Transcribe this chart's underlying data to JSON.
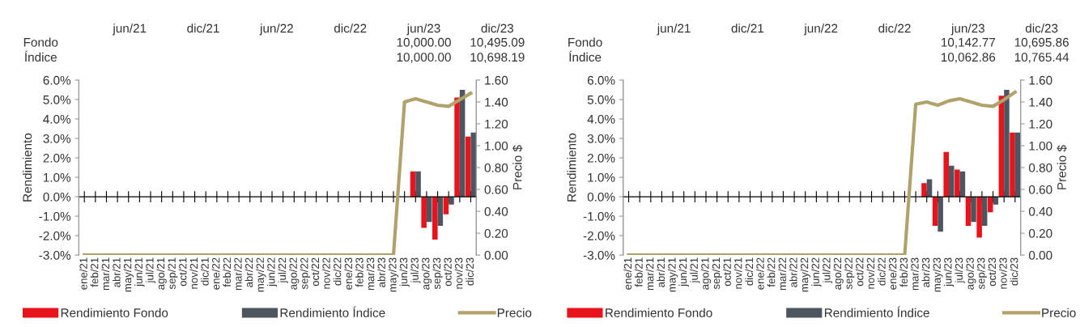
{
  "chart_data": [
    {
      "type": "bar",
      "ylabel": "Rendimiento",
      "y2label": "Precio $",
      "legend": "bottom",
      "marker": "none",
      "line_style": "solid",
      "annotations": [
        "jun/21",
        "dic/21",
        "jun/22",
        "dic/22",
        "jun/23",
        "dic/23",
        "Fondo",
        "10,000.00",
        "10,495.09",
        "Índice",
        "10,000.00",
        "10,698.19"
      ],
      "categories": [
        "ene/21",
        "feb/21",
        "mar/21",
        "abr/21",
        "may/21",
        "jun/21",
        "jul/21",
        "ago/21",
        "sep/21",
        "oct/21",
        "nov/21",
        "dic/21",
        "ene/22",
        "feb/22",
        "mar/22",
        "abr/22",
        "may/22",
        "jun/22",
        "jul/22",
        "ago/22",
        "sep/22",
        "oct/22",
        "nov/22",
        "dic/22",
        "ene/23",
        "feb/23",
        "mar/23",
        "abr/23",
        "may/23",
        "jun/23",
        "jul/23",
        "ago/23",
        "sep/23",
        "oct/23",
        "nov/23",
        "dic/23"
      ],
      "ylim": [
        -3,
        6
      ],
      "yticks": [
        {
          "value": -3,
          "label": "-3.0%"
        },
        {
          "value": -2,
          "label": "-2.0%"
        },
        {
          "value": -1,
          "label": "-1.0%"
        },
        {
          "value": 0,
          "label": "0.0%"
        },
        {
          "value": 1,
          "label": "1.0%"
        },
        {
          "value": 2,
          "label": "2.0%"
        },
        {
          "value": 3,
          "label": "3.0%"
        },
        {
          "value": 4,
          "label": "4.0%"
        },
        {
          "value": 5,
          "label": "5.0%"
        },
        {
          "value": 6,
          "label": "6.0%"
        }
      ],
      "y2lim": [
        0,
        1.6
      ],
      "y2ticks": [
        {
          "value": 0,
          "label": "0.00"
        },
        {
          "value": 0.2,
          "label": "0.20"
        },
        {
          "value": 0.4,
          "label": "0.40"
        },
        {
          "value": 0.6,
          "label": "0.60"
        },
        {
          "value": 0.8,
          "label": "0.80"
        },
        {
          "value": 1.0,
          "label": "1.00"
        },
        {
          "value": 1.2,
          "label": "1.20"
        },
        {
          "value": 1.4,
          "label": "1.40"
        },
        {
          "value": 1.6,
          "label": "1.60"
        }
      ],
      "series": [
        {
          "name": "Rendimiento Fondo",
          "color": "#e8131b",
          "values": [
            null,
            null,
            null,
            null,
            null,
            null,
            null,
            null,
            null,
            null,
            null,
            null,
            null,
            null,
            null,
            null,
            null,
            null,
            null,
            null,
            null,
            null,
            null,
            null,
            null,
            null,
            null,
            null,
            null,
            null,
            1.3,
            -1.6,
            -2.2,
            -0.9,
            5.1,
            3.1
          ]
        },
        {
          "name": "Rendimiento Índice",
          "color": "#4d5561",
          "values": [
            null,
            null,
            null,
            null,
            null,
            null,
            null,
            null,
            null,
            null,
            null,
            null,
            null,
            null,
            null,
            null,
            null,
            null,
            null,
            null,
            null,
            null,
            null,
            null,
            null,
            null,
            null,
            null,
            null,
            null,
            1.3,
            -1.3,
            -1.5,
            -0.4,
            5.5,
            3.3
          ]
        },
        {
          "name": "Precio",
          "type": "line",
          "axis": "y2",
          "color": "#b0a26a",
          "values": [
            0,
            0,
            0,
            0,
            0,
            0,
            0,
            0,
            0,
            0,
            0,
            0,
            0,
            0,
            0,
            0,
            0,
            0,
            0,
            0,
            0,
            0,
            0,
            0,
            0,
            0,
            0,
            0,
            0,
            1.4,
            1.43,
            1.4,
            1.37,
            1.36,
            1.42,
            1.48
          ]
        }
      ]
    },
    {
      "type": "bar",
      "ylabel": "Rendimiento",
      "y2label": "Precio $",
      "legend": "bottom",
      "marker": "none",
      "line_style": "solid",
      "annotations": [
        "jun/21",
        "dic/21",
        "jun/22",
        "dic/22",
        "jun/23",
        "dic/23",
        "Fondo",
        "10,142.77",
        "10,695.86",
        "Índice",
        "10,062.86",
        "10,765.44"
      ],
      "categories": [
        "ene/21",
        "feb/21",
        "mar/21",
        "abr/21",
        "may/21",
        "jun/21",
        "jul/21",
        "ago/21",
        "sep/21",
        "oct/21",
        "nov/21",
        "dic/21",
        "ene/22",
        "feb/22",
        "mar/22",
        "abr/22",
        "may/22",
        "jun/22",
        "jul/22",
        "ago/22",
        "sep/22",
        "oct/22",
        "nov/22",
        "dic/22",
        "ene/23",
        "feb/23",
        "mar/23",
        "abr/23",
        "may/23",
        "jun/23",
        "jul/23",
        "ago/23",
        "sep/23",
        "oct/23",
        "nov/23",
        "dic/23"
      ],
      "ylim": [
        -3,
        6
      ],
      "yticks": [
        {
          "value": -3,
          "label": "-3.0%"
        },
        {
          "value": -2,
          "label": "-2.0%"
        },
        {
          "value": -1,
          "label": "-1.0%"
        },
        {
          "value": 0,
          "label": "0.0%"
        },
        {
          "value": 1,
          "label": "1.0%"
        },
        {
          "value": 2,
          "label": "2.0%"
        },
        {
          "value": 3,
          "label": "3.0%"
        },
        {
          "value": 4,
          "label": "4.0%"
        },
        {
          "value": 5,
          "label": "5.0%"
        },
        {
          "value": 6,
          "label": "6.0%"
        }
      ],
      "y2lim": [
        0,
        1.6
      ],
      "y2ticks": [
        {
          "value": 0,
          "label": "0.00"
        },
        {
          "value": 0.2,
          "label": "0.20"
        },
        {
          "value": 0.4,
          "label": "0.40"
        },
        {
          "value": 0.6,
          "label": "0.60"
        },
        {
          "value": 0.8,
          "label": "0.80"
        },
        {
          "value": 1.0,
          "label": "1.00"
        },
        {
          "value": 1.2,
          "label": "1.20"
        },
        {
          "value": 1.4,
          "label": "1.40"
        },
        {
          "value": 1.6,
          "label": "1.60"
        }
      ],
      "series": [
        {
          "name": "Rendimiento Fondo",
          "color": "#e8131b",
          "values": [
            null,
            null,
            null,
            null,
            null,
            null,
            null,
            null,
            null,
            null,
            null,
            null,
            null,
            null,
            null,
            null,
            null,
            null,
            null,
            null,
            null,
            null,
            null,
            null,
            null,
            null,
            null,
            0.7,
            -1.5,
            2.3,
            1.4,
            -1.5,
            -2.1,
            -0.8,
            5.2,
            3.3
          ]
        },
        {
          "name": "Rendimiento Índice",
          "color": "#4d5561",
          "values": [
            null,
            null,
            null,
            null,
            null,
            null,
            null,
            null,
            null,
            null,
            null,
            null,
            null,
            null,
            null,
            null,
            null,
            null,
            null,
            null,
            null,
            null,
            null,
            null,
            null,
            null,
            null,
            0.9,
            -1.8,
            1.6,
            1.3,
            -1.3,
            -1.5,
            -0.4,
            5.5,
            3.3
          ]
        },
        {
          "name": "Precio",
          "type": "line",
          "axis": "y2",
          "color": "#b0a26a",
          "values": [
            0,
            0,
            0,
            0,
            0,
            0,
            0,
            0,
            0,
            0,
            0,
            0,
            0,
            0,
            0,
            0,
            0,
            0,
            0,
            0,
            0,
            0,
            0,
            0,
            0,
            0,
            1.38,
            1.4,
            1.37,
            1.41,
            1.43,
            1.4,
            1.37,
            1.36,
            1.42,
            1.49
          ]
        }
      ]
    }
  ]
}
